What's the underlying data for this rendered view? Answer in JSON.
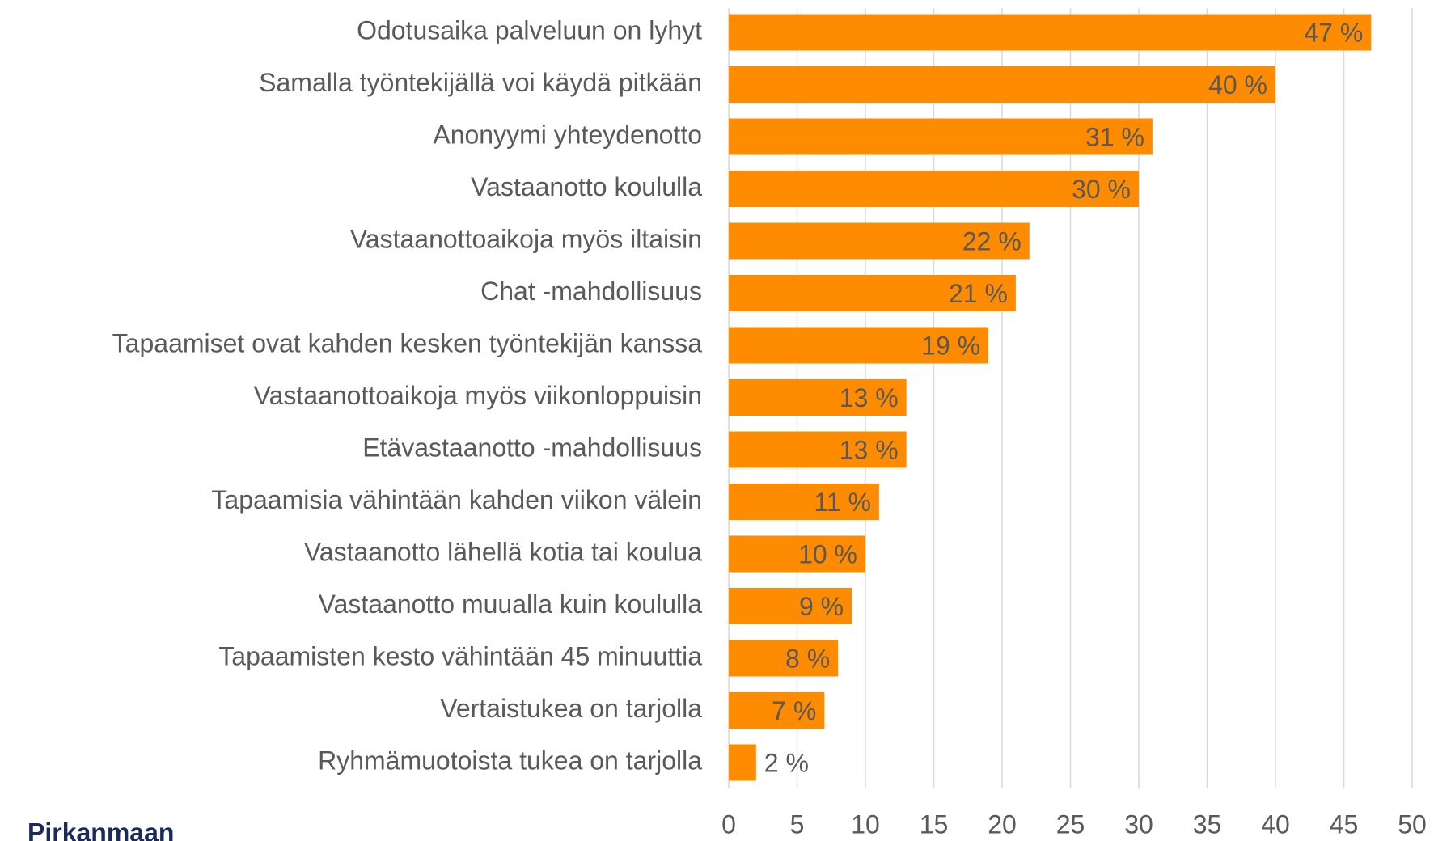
{
  "chart_data": {
    "type": "bar",
    "orientation": "horizontal",
    "categories": [
      "Odotusaika palveluun on lyhyt",
      "Samalla työntekijällä voi käydä pitkään",
      "Anonyymi yhteydenotto",
      "Vastaanotto koululla",
      "Vastaanottoaikoja myös iltaisin",
      "Chat -mahdollisuus",
      "Tapaamiset ovat kahden kesken työntekijän kanssa",
      "Vastaanottoaikoja myös viikonloppuisin",
      "Etävastaanotto -mahdollisuus",
      "Tapaamisia vähintään kahden viikon välein",
      "Vastaanotto lähellä kotia tai koulua",
      "Vastaanotto muualla kuin koululla",
      "Tapaamisten kesto vähintään 45 minuuttia",
      "Vertaistukea on tarjolla",
      "Ryhmämuotoista tukea on tarjolla"
    ],
    "values": [
      47,
      40,
      31,
      30,
      22,
      21,
      19,
      13,
      13,
      11,
      10,
      9,
      8,
      7,
      2
    ],
    "value_labels": [
      "47 %",
      "40 %",
      "31 %",
      "30 %",
      "22 %",
      "21 %",
      "19 %",
      "13 %",
      "13 %",
      "11 %",
      "10 %",
      "9 %",
      "8 %",
      "7 %",
      "2 %"
    ],
    "color": "#ff8c00",
    "xlim": [
      0,
      50
    ],
    "xticks": [
      0,
      5,
      10,
      15,
      20,
      25,
      30,
      35,
      40,
      45,
      50
    ],
    "grid": true
  },
  "logo": {
    "text": "Pirkanmaan"
  }
}
